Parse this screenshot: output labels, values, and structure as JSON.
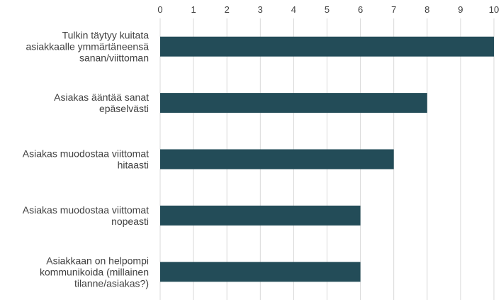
{
  "chart_data": {
    "type": "bar",
    "orientation": "horizontal",
    "title": "",
    "xlabel": "",
    "ylabel": "",
    "xlim": [
      0,
      10
    ],
    "x_ticks": [
      "0",
      "1",
      "2",
      "3",
      "4",
      "5",
      "6",
      "7",
      "8",
      "9",
      "10"
    ],
    "x_axis_position": "top",
    "grid": "vertical",
    "legend": "none",
    "bar_color": "#234c58",
    "categories": [
      [
        "Tulkin täytyy kuitata",
        "asiakkaalle ymmärtäneensä",
        "sanan/viittoman"
      ],
      [
        "Asiakas ääntää sanat",
        "epäselvästi"
      ],
      [
        "Asiakas muodostaa viittomat",
        "hitaasti"
      ],
      [
        "Asiakas muodostaa viittomat",
        "nopeasti"
      ],
      [
        "Asiakkaan on helpompi",
        "kommunikoida (millainen",
        "tilanne/asiakas?)"
      ]
    ],
    "values": [
      10,
      8,
      7,
      6,
      6
    ]
  }
}
